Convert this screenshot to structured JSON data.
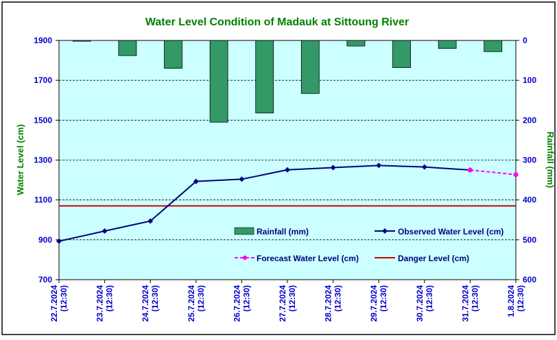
{
  "chart_data": {
    "type": "bar+line",
    "title": "Water Level Condition of Madauk at Sittoung River",
    "ylabel": "Water Level (cm)",
    "y2label": "Rainfall (mm)",
    "ylim": [
      700,
      1900
    ],
    "y_ticks": [
      "1900",
      "1700",
      "1500",
      "1300",
      "1100",
      "900",
      "700"
    ],
    "y2lim": [
      0,
      600
    ],
    "y2_inverted": true,
    "y2_ticks": [
      "0",
      "100",
      "200",
      "300",
      "400",
      "500",
      "600"
    ],
    "categories": [
      {
        "date": "22.7.2024",
        "time": "(12:30)"
      },
      {
        "date": "23.7.2024",
        "time": "(12:30)"
      },
      {
        "date": "24.7.2024",
        "time": "(12:30)"
      },
      {
        "date": "25.7.2024",
        "time": "(12:30)"
      },
      {
        "date": "26.7.2024",
        "time": "(12:30)"
      },
      {
        "date": "27.7.2024",
        "time": "(12:30)"
      },
      {
        "date": "28.7.2024",
        "time": "(12:30)"
      },
      {
        "date": "29.7.2024",
        "time": "(12:30)"
      },
      {
        "date": "30.7.2024",
        "time": "(12:30)"
      },
      {
        "date": "31.7.2024",
        "time": "(12:30)"
      },
      {
        "date": "1.8.2024",
        "time": "(12:30)"
      }
    ],
    "series": [
      {
        "name": "Rainfall (mm)",
        "kind": "bar",
        "axis": "right",
        "color": "#339966",
        "values": [
          2,
          38,
          70,
          205,
          182,
          133,
          14,
          68,
          20,
          28,
          null
        ]
      },
      {
        "name": "Observed Water Level (cm)",
        "kind": "line",
        "axis": "left",
        "color": "#000080",
        "values": [
          893,
          944,
          994,
          1193,
          1204,
          1251,
          1262,
          1273,
          1265,
          1250,
          null
        ]
      },
      {
        "name": "Forecast Water Level (cm)",
        "kind": "dashed-line",
        "axis": "left",
        "color": "#FF00FF",
        "values": [
          null,
          null,
          null,
          null,
          null,
          null,
          null,
          null,
          null,
          1250,
          1227
        ]
      },
      {
        "name": "Danger Level (cm)",
        "kind": "hline",
        "axis": "left",
        "color": "#CC0000",
        "value": 1070
      }
    ],
    "grid": true,
    "legend_position": "bottom-inside",
    "colors": {
      "plot_background": "#CCFFFF",
      "title": "#008000",
      "axis_title": "#008000",
      "tick_label": "#0000CC"
    }
  }
}
